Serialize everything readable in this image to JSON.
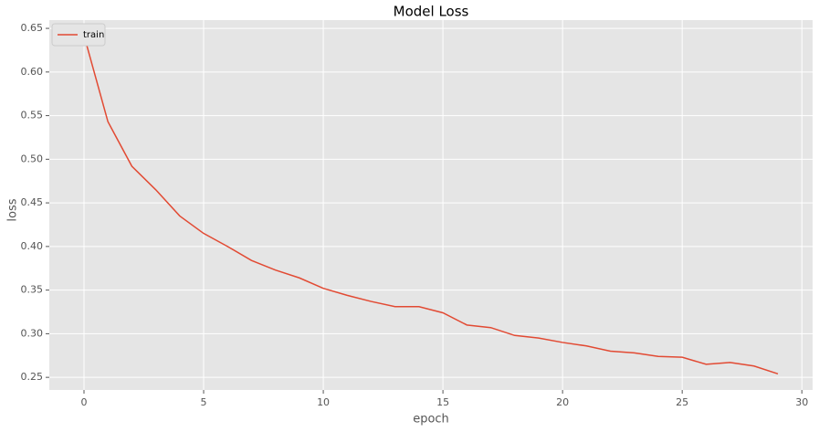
{
  "chart_data": {
    "type": "line",
    "title": "Model Loss",
    "x_label": "epoch",
    "y_label": "loss",
    "x": [
      0,
      1,
      2,
      3,
      4,
      5,
      6,
      7,
      8,
      9,
      10,
      11,
      12,
      13,
      14,
      15,
      16,
      17,
      18,
      19,
      20,
      21,
      22,
      23,
      24,
      25,
      26,
      27,
      28,
      29
    ],
    "series": [
      {
        "name": "train",
        "color": "#e24a33",
        "values": [
          0.642,
          0.543,
          0.492,
          0.465,
          0.435,
          0.415,
          0.4,
          0.384,
          0.373,
          0.364,
          0.352,
          0.344,
          0.337,
          0.331,
          0.331,
          0.324,
          0.31,
          0.307,
          0.298,
          0.295,
          0.29,
          0.286,
          0.28,
          0.278,
          0.274,
          0.273,
          0.265,
          0.267,
          0.263,
          0.254
        ]
      }
    ],
    "xlim": [
      -1.45,
      30.45
    ],
    "xticks": [
      0,
      5,
      10,
      15,
      20,
      25,
      30
    ],
    "ylim": [
      0.2355,
      0.6595
    ],
    "yticks": [
      0.25,
      {
        "value": 0.3,
        "label": "0.30"
      },
      0.35,
      {
        "value": 0.4,
        "label": "0.40"
      },
      0.45,
      {
        "value": 0.5,
        "label": "0.50"
      },
      0.55,
      {
        "value": 0.6,
        "label": "0.60"
      },
      0.65
    ],
    "grid": true,
    "legend_position": "upper-left",
    "background": "#e5e5e5"
  }
}
